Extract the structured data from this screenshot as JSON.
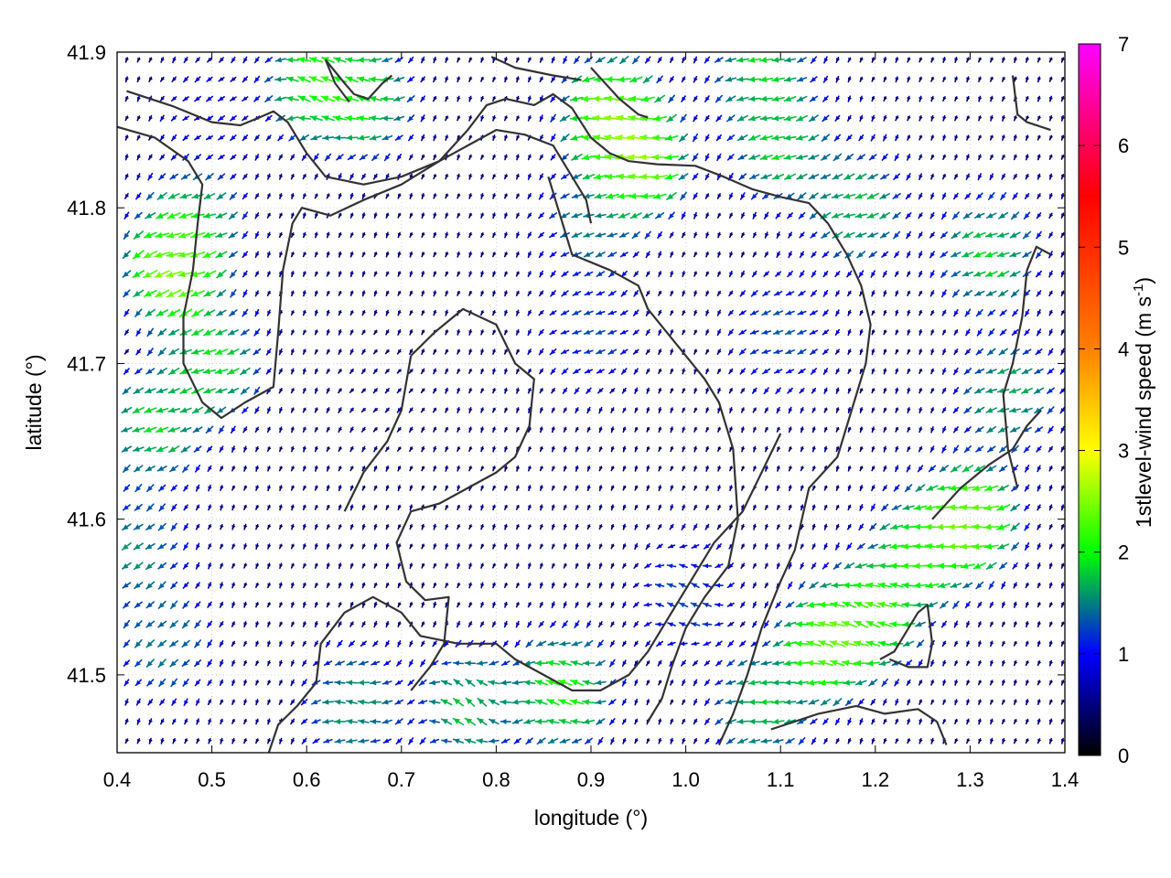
{
  "chart_data": {
    "type": "vector_field",
    "xlabel": "longitude (°)",
    "ylabel": "latitude (°)",
    "xlim": [
      0.4,
      1.4
    ],
    "ylim": [
      41.45,
      41.9
    ],
    "x_ticks": [
      0.4,
      0.5,
      0.6,
      0.7,
      0.8,
      0.9,
      1.0,
      1.1,
      1.2,
      1.3,
      1.4
    ],
    "y_ticks": [
      41.5,
      41.6,
      41.7,
      41.8,
      41.9
    ],
    "grid": true,
    "colorbar": {
      "label_main": "1stlevel-wind speed (m s",
      "label_sup": "-1",
      "label_end": ")",
      "range": [
        0,
        7
      ],
      "ticks": [
        0,
        1,
        2,
        3,
        4,
        5,
        6,
        7
      ],
      "colors": [
        "#000000",
        "#0000ff",
        "#00ff00",
        "#ffff00",
        "#ff8000",
        "#ff0000",
        "#ff00ff"
      ],
      "color_positions": [
        0,
        1,
        2,
        3,
        4,
        5.5,
        7
      ]
    },
    "grid_spacing_lon": 0.0125,
    "grid_spacing_lat": 0.0125,
    "wind_regions": [
      {
        "lon": 0.46,
        "lat": 41.76,
        "speed": 3.2,
        "dir_deg": 185
      },
      {
        "lon": 0.44,
        "lat": 41.66,
        "speed": 2.3,
        "dir_deg": 180
      },
      {
        "lon": 0.5,
        "lat": 41.7,
        "speed": 2.4,
        "dir_deg": 180
      },
      {
        "lon": 0.48,
        "lat": 41.79,
        "speed": 2.3,
        "dir_deg": 180
      },
      {
        "lon": 0.42,
        "lat": 41.58,
        "speed": 1.9,
        "dir_deg": 200
      },
      {
        "lon": 0.45,
        "lat": 41.52,
        "speed": 1.8,
        "dir_deg": 210
      },
      {
        "lon": 0.61,
        "lat": 41.88,
        "speed": 2.6,
        "dir_deg": 135
      },
      {
        "lon": 0.66,
        "lat": 41.87,
        "speed": 2.4,
        "dir_deg": 150
      },
      {
        "lon": 0.92,
        "lat": 41.86,
        "speed": 3.0,
        "dir_deg": 150
      },
      {
        "lon": 0.95,
        "lat": 41.83,
        "speed": 3.2,
        "dir_deg": 155
      },
      {
        "lon": 1.08,
        "lat": 41.89,
        "speed": 2.3,
        "dir_deg": 165
      },
      {
        "lon": 1.1,
        "lat": 41.84,
        "speed": 2.3,
        "dir_deg": 175
      },
      {
        "lon": 1.18,
        "lat": 41.8,
        "speed": 2.2,
        "dir_deg": 180
      },
      {
        "lon": 1.32,
        "lat": 41.77,
        "speed": 2.3,
        "dir_deg": 180
      },
      {
        "lon": 1.34,
        "lat": 41.68,
        "speed": 2.1,
        "dir_deg": 180
      },
      {
        "lon": 0.9,
        "lat": 41.79,
        "speed": 1.8,
        "dir_deg": 180
      },
      {
        "lon": 0.9,
        "lat": 41.72,
        "speed": 1.5,
        "dir_deg": 180
      },
      {
        "lon": 1.1,
        "lat": 41.72,
        "speed": 1.6,
        "dir_deg": 180
      },
      {
        "lon": 1.25,
        "lat": 41.58,
        "speed": 2.6,
        "dir_deg": 160
      },
      {
        "lon": 1.3,
        "lat": 41.6,
        "speed": 3.1,
        "dir_deg": 160
      },
      {
        "lon": 1.15,
        "lat": 41.52,
        "speed": 3.0,
        "dir_deg": 145
      },
      {
        "lon": 1.2,
        "lat": 41.54,
        "speed": 2.7,
        "dir_deg": 140
      },
      {
        "lon": 0.87,
        "lat": 41.49,
        "speed": 2.6,
        "dir_deg": 135
      },
      {
        "lon": 0.77,
        "lat": 41.48,
        "speed": 2.2,
        "dir_deg": 120
      },
      {
        "lon": 0.65,
        "lat": 41.48,
        "speed": 2.0,
        "dir_deg": 150
      },
      {
        "lon": 1.0,
        "lat": 41.55,
        "speed": 1.5,
        "dir_deg": 130
      },
      {
        "lon": 1.08,
        "lat": 41.48,
        "speed": 2.2,
        "dir_deg": 160
      },
      {
        "lon": 0.68,
        "lat": 41.68,
        "speed": 0.6,
        "dir_deg": 220
      },
      {
        "lon": 0.5,
        "lat": 41.86,
        "speed": 1.1,
        "dir_deg": 200
      },
      {
        "lon": 0.35,
        "lat": 41.72,
        "speed": 0.4,
        "dir_deg": 200
      }
    ],
    "calm_speed": 0.5,
    "calm_dir_deg": 250,
    "contours": [
      [
        [
          0.41,
          41.875
        ],
        [
          0.46,
          41.865
        ],
        [
          0.5,
          41.855
        ],
        [
          0.53,
          41.853
        ],
        [
          0.55,
          41.858
        ],
        [
          0.565,
          41.862
        ],
        [
          0.58,
          41.855
        ],
        [
          0.6,
          41.835
        ],
        [
          0.62,
          41.82
        ],
        [
          0.66,
          41.815
        ],
        [
          0.7,
          41.82
        ],
        [
          0.74,
          41.83
        ],
        [
          0.77,
          41.85
        ],
        [
          0.79,
          41.866
        ],
        [
          0.81,
          41.87
        ],
        [
          0.84,
          41.866
        ],
        [
          0.86,
          41.873
        ],
        [
          0.88,
          41.864
        ],
        [
          0.9,
          41.845
        ],
        [
          0.92,
          41.835
        ],
        [
          0.94,
          41.83
        ],
        [
          0.97,
          41.828
        ],
        [
          1.01,
          41.827
        ],
        [
          1.04,
          41.82
        ],
        [
          1.07,
          41.812
        ],
        [
          1.1,
          41.807
        ],
        [
          1.13,
          41.803
        ],
        [
          1.15,
          41.79
        ],
        [
          1.17,
          41.77
        ],
        [
          1.185,
          41.75
        ],
        [
          1.195,
          41.725
        ],
        [
          1.19,
          41.7
        ],
        [
          1.175,
          41.67
        ],
        [
          1.16,
          41.64
        ],
        [
          1.13,
          41.62
        ],
        [
          1.115,
          41.58
        ],
        [
          1.1,
          41.56
        ],
        [
          1.08,
          41.53
        ],
        [
          1.065,
          41.5
        ],
        [
          1.05,
          41.475
        ],
        [
          1.035,
          41.455
        ]
      ],
      [
        [
          0.4,
          41.852
        ],
        [
          0.44,
          41.845
        ],
        [
          0.475,
          41.83
        ],
        [
          0.49,
          41.815
        ],
        [
          0.485,
          41.79
        ],
        [
          0.48,
          41.76
        ],
        [
          0.47,
          41.73
        ],
        [
          0.47,
          41.7
        ],
        [
          0.49,
          41.675
        ],
        [
          0.51,
          41.665
        ],
        [
          0.535,
          41.675
        ],
        [
          0.565,
          41.685
        ],
        [
          0.57,
          41.72
        ],
        [
          0.575,
          41.76
        ],
        [
          0.585,
          41.79
        ],
        [
          0.595,
          41.8
        ],
        [
          0.625,
          41.795
        ],
        [
          0.66,
          41.805
        ],
        [
          0.7,
          41.815
        ],
        [
          0.74,
          41.83
        ],
        [
          0.77,
          41.84
        ],
        [
          0.8,
          41.85
        ],
        [
          0.83,
          41.847
        ],
        [
          0.86,
          41.84
        ],
        [
          0.88,
          41.82
        ],
        [
          0.895,
          41.805
        ],
        [
          0.9,
          41.79
        ]
      ],
      [
        [
          0.71,
          41.705
        ],
        [
          0.735,
          41.72
        ],
        [
          0.765,
          41.735
        ],
        [
          0.8,
          41.725
        ],
        [
          0.82,
          41.7
        ],
        [
          0.84,
          41.69
        ],
        [
          0.835,
          41.66
        ],
        [
          0.82,
          41.64
        ],
        [
          0.8,
          41.63
        ],
        [
          0.77,
          41.62
        ],
        [
          0.74,
          41.61
        ],
        [
          0.71,
          41.605
        ],
        [
          0.695,
          41.585
        ],
        [
          0.705,
          41.56
        ],
        [
          0.725,
          41.548
        ],
        [
          0.75,
          41.55
        ],
        [
          0.745,
          41.52
        ],
        [
          0.73,
          41.505
        ],
        [
          0.71,
          41.49
        ]
      ],
      [
        [
          0.64,
          41.605
        ],
        [
          0.66,
          41.63
        ],
        [
          0.685,
          41.65
        ],
        [
          0.7,
          41.67
        ],
        [
          0.71,
          41.705
        ]
      ],
      [
        [
          0.855,
          41.82
        ],
        [
          0.87,
          41.79
        ],
        [
          0.88,
          41.77
        ],
        [
          0.92,
          41.76
        ],
        [
          0.95,
          41.75
        ],
        [
          0.96,
          41.735
        ],
        [
          0.98,
          41.72
        ],
        [
          1.0,
          41.705
        ],
        [
          1.02,
          41.69
        ],
        [
          1.035,
          41.675
        ],
        [
          1.05,
          41.645
        ],
        [
          1.055,
          41.6
        ],
        [
          1.045,
          41.57
        ],
        [
          1.02,
          41.55
        ],
        [
          1.0,
          41.53
        ],
        [
          0.985,
          41.505
        ],
        [
          0.975,
          41.485
        ],
        [
          0.96,
          41.47
        ]
      ],
      [
        [
          0.56,
          41.45
        ],
        [
          0.57,
          41.468
        ],
        [
          0.59,
          41.48
        ],
        [
          0.61,
          41.495
        ],
        [
          0.615,
          41.52
        ],
        [
          0.64,
          41.54
        ],
        [
          0.67,
          41.55
        ],
        [
          0.7,
          41.54
        ],
        [
          0.72,
          41.525
        ],
        [
          0.76,
          41.52
        ],
        [
          0.8,
          41.52
        ],
        [
          0.82,
          41.51
        ],
        [
          0.85,
          41.5
        ],
        [
          0.88,
          41.49
        ],
        [
          0.91,
          41.49
        ],
        [
          0.94,
          41.5
        ],
        [
          0.96,
          41.515
        ],
        [
          0.99,
          41.545
        ],
        [
          1.01,
          41.565
        ],
        [
          1.03,
          41.585
        ],
        [
          1.06,
          41.605
        ],
        [
          1.08,
          41.63
        ],
        [
          1.1,
          41.655
        ]
      ],
      [
        [
          1.09,
          41.465
        ],
        [
          1.14,
          41.475
        ],
        [
          1.18,
          41.48
        ],
        [
          1.21,
          41.475
        ],
        [
          1.245,
          41.478
        ],
        [
          1.265,
          41.47
        ],
        [
          1.275,
          41.455
        ]
      ],
      [
        [
          1.205,
          41.51
        ],
        [
          1.22,
          41.515
        ],
        [
          1.245,
          41.54
        ],
        [
          1.255,
          41.545
        ],
        [
          1.26,
          41.52
        ],
        [
          1.255,
          41.505
        ],
        [
          1.235,
          41.505
        ],
        [
          1.215,
          41.51
        ]
      ],
      [
        [
          1.26,
          41.6
        ],
        [
          1.29,
          41.62
        ],
        [
          1.32,
          41.635
        ],
        [
          1.345,
          41.645
        ],
        [
          1.36,
          41.66
        ],
        [
          1.375,
          41.67
        ]
      ],
      [
        [
          1.35,
          41.62
        ],
        [
          1.34,
          41.645
        ],
        [
          1.335,
          41.68
        ],
        [
          1.345,
          41.7
        ],
        [
          1.355,
          41.73
        ],
        [
          1.36,
          41.76
        ],
        [
          1.37,
          41.775
        ],
        [
          1.385,
          41.77
        ]
      ],
      [
        [
          1.345,
          41.885
        ],
        [
          1.35,
          41.86
        ],
        [
          1.36,
          41.855
        ],
        [
          1.385,
          41.85
        ]
      ],
      [
        [
          0.62,
          41.895
        ],
        [
          0.64,
          41.88
        ],
        [
          0.65,
          41.873
        ],
        [
          0.665,
          41.87
        ],
        [
          0.68,
          41.88
        ],
        [
          0.69,
          41.885
        ]
      ],
      [
        [
          0.795,
          41.897
        ],
        [
          0.82,
          41.89
        ],
        [
          0.86,
          41.885
        ],
        [
          0.89,
          41.882
        ]
      ],
      [
        [
          0.9,
          41.89
        ],
        [
          0.93,
          41.87
        ],
        [
          0.95,
          41.86
        ],
        [
          0.96,
          41.858
        ]
      ],
      [
        [
          0.62,
          41.895
        ],
        [
          0.63,
          41.88
        ],
        [
          0.645,
          41.868
        ]
      ]
    ]
  }
}
